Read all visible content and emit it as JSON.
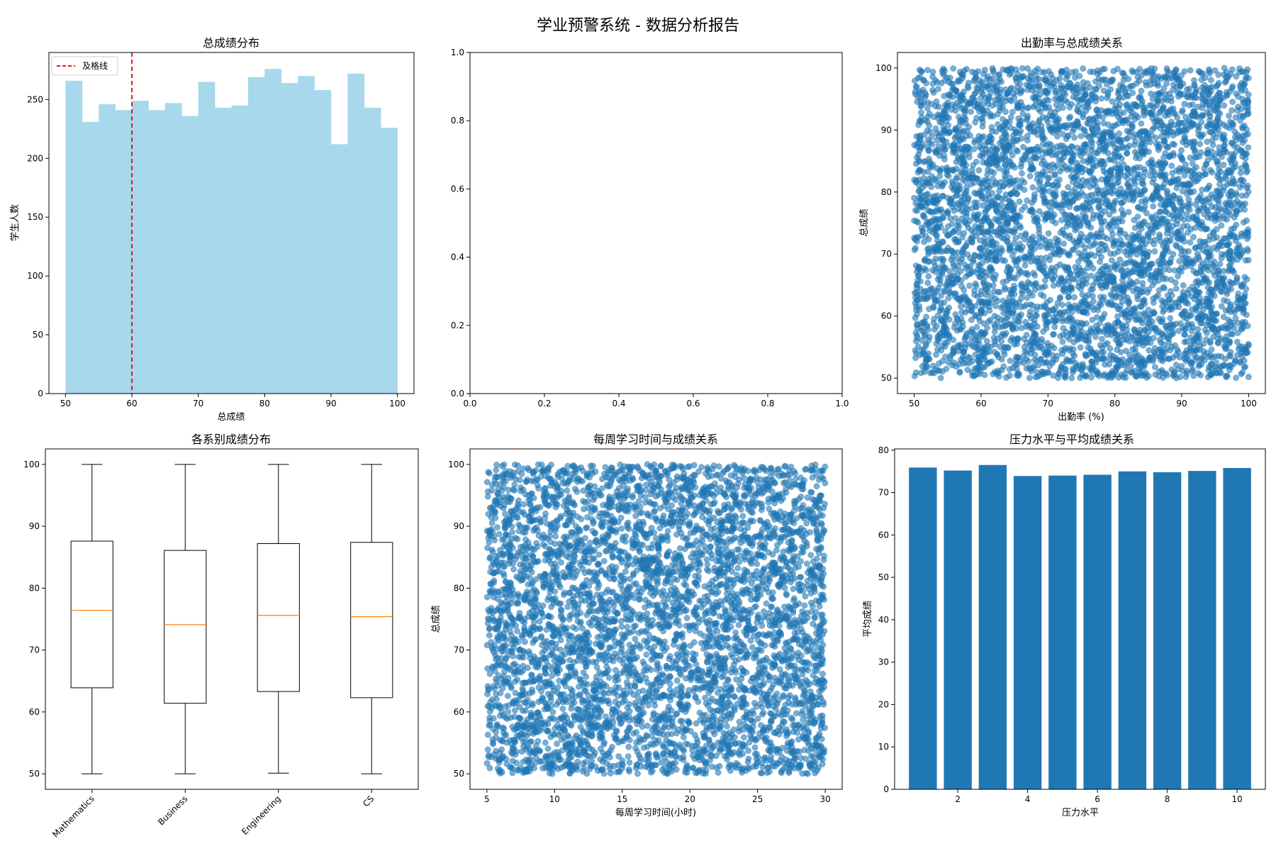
{
  "figure": {
    "title": "学业预警系统 - 数据分析报告",
    "colors": {
      "hist": "#a8d8ec",
      "scatter": "#1f77b4",
      "bar": "#1f77b4",
      "median": "#ff7f0e",
      "passline": "#e31a1c"
    }
  },
  "chart_data": [
    {
      "type": "bar",
      "subtype": "histogram",
      "title": "总成绩分布",
      "xlabel": "总成绩",
      "ylabel": "学生人数",
      "bin_edges": [
        50,
        52.5,
        55,
        57.5,
        60,
        62.5,
        65,
        67.5,
        70,
        72.5,
        75,
        77.5,
        80,
        82.5,
        85,
        87.5,
        90,
        92.5,
        95,
        97.5,
        100
      ],
      "values": [
        266,
        231,
        246,
        241,
        249,
        241,
        247,
        236,
        265,
        243,
        245,
        269,
        276,
        264,
        270,
        258,
        212,
        272,
        243,
        226
      ],
      "xlim": [
        47.5,
        102.5
      ],
      "ylim": [
        0,
        290
      ],
      "xticks": [
        50,
        60,
        70,
        80,
        90,
        100
      ],
      "yticks": [
        0,
        50,
        100,
        150,
        200,
        250
      ],
      "reference_line": {
        "x": 60,
        "label": "及格线"
      },
      "legend": "top-left"
    },
    {
      "type": "line",
      "title": "",
      "xlabel": "",
      "ylabel": "",
      "empty": true,
      "xlim": [
        0,
        1
      ],
      "ylim": [
        0,
        1
      ],
      "xticks": [
        "0.0",
        "0.2",
        "0.4",
        "0.6",
        "0.8",
        "1.0"
      ],
      "yticks": [
        "0.0",
        "0.2",
        "0.4",
        "0.6",
        "0.8",
        "1.0"
      ]
    },
    {
      "type": "scatter",
      "title": "出勤率与总成绩关系",
      "xlabel": "出勤率 (%)",
      "ylabel": "总成绩",
      "x_range": [
        50,
        100
      ],
      "y_range": [
        50,
        100
      ],
      "point_count": 5000,
      "distribution": "uniform",
      "xlim": [
        47.5,
        102.5
      ],
      "ylim": [
        47.5,
        102.5
      ],
      "xticks": [
        50,
        60,
        70,
        80,
        90,
        100
      ],
      "yticks": [
        50,
        60,
        70,
        80,
        90,
        100
      ]
    },
    {
      "type": "box",
      "title": "各系别成绩分布",
      "xlabel": "",
      "ylabel": "",
      "categories": [
        "Mathematics",
        "Business",
        "Engineering",
        "CS"
      ],
      "boxes": [
        {
          "min": 50.0,
          "q1": 63.9,
          "median": 76.4,
          "q3": 87.6,
          "max": 100.0
        },
        {
          "min": 50.0,
          "q1": 61.4,
          "median": 74.1,
          "q3": 86.1,
          "max": 100.0
        },
        {
          "min": 50.1,
          "q1": 63.3,
          "median": 75.6,
          "q3": 87.2,
          "max": 100.0
        },
        {
          "min": 50.0,
          "q1": 62.3,
          "median": 75.4,
          "q3": 87.4,
          "max": 100.0
        }
      ],
      "ylim": [
        47.5,
        102.5
      ],
      "yticks": [
        50,
        60,
        70,
        80,
        90,
        100
      ]
    },
    {
      "type": "scatter",
      "title": "每周学习时间与成绩关系",
      "xlabel": "每周学习时间(小时)",
      "ylabel": "总成绩",
      "x_range": [
        5,
        30
      ],
      "y_range": [
        50,
        100
      ],
      "point_count": 5000,
      "distribution": "uniform",
      "xlim": [
        3.75,
        31.25
      ],
      "ylim": [
        47.5,
        102.5
      ],
      "xticks": [
        5,
        10,
        15,
        20,
        25,
        30
      ],
      "yticks": [
        50,
        60,
        70,
        80,
        90,
        100
      ]
    },
    {
      "type": "bar",
      "title": "压力水平与平均成绩关系",
      "xlabel": "压力水平",
      "ylabel": "平均成绩",
      "categories": [
        1,
        2,
        3,
        4,
        5,
        6,
        7,
        8,
        9,
        10
      ],
      "values": [
        75.9,
        75.2,
        76.5,
        73.9,
        74.0,
        74.2,
        75.0,
        74.8,
        75.1,
        75.8
      ],
      "xlim": [
        0.19,
        10.81
      ],
      "ylim": [
        0,
        80.3
      ],
      "xticks": [
        2,
        4,
        6,
        8,
        10
      ],
      "yticks": [
        0,
        10,
        20,
        30,
        40,
        50,
        60,
        70,
        80
      ]
    }
  ]
}
